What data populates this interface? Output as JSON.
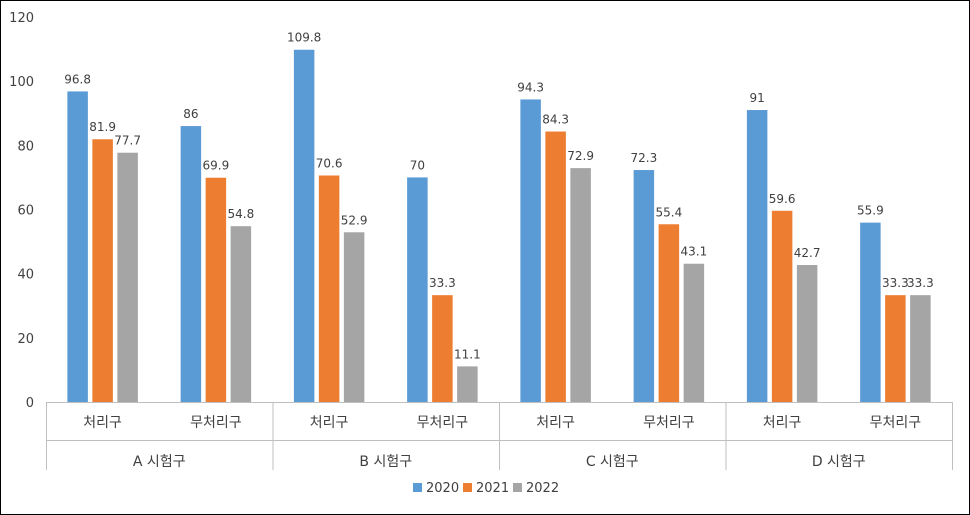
{
  "chart_data": {
    "type": "bar",
    "title": "",
    "xlabel": "",
    "ylabel": "",
    "ylim": [
      0,
      120
    ],
    "yticks": [
      0,
      20,
      40,
      60,
      80,
      100,
      120
    ],
    "grid": false,
    "legend_position": "bottom",
    "groups": [
      {
        "label": "A 시험구",
        "categories": [
          "처리구",
          "무처리구"
        ]
      },
      {
        "label": "B 시험구",
        "categories": [
          "처리구",
          "무처리구"
        ]
      },
      {
        "label": "C 시험구",
        "categories": [
          "처리구",
          "무처리구"
        ]
      },
      {
        "label": "D 시험구",
        "categories": [
          "처리구",
          "무처리구"
        ]
      }
    ],
    "categories": [
      "처리구",
      "무처리구",
      "처리구",
      "무처리구",
      "처리구",
      "무처리구",
      "처리구",
      "무처리구"
    ],
    "series": [
      {
        "name": "2020",
        "color": "#5B9BD5",
        "values": [
          96.8,
          86,
          109.8,
          70,
          94.3,
          72.3,
          91,
          55.9
        ]
      },
      {
        "name": "2021",
        "color": "#ED7D31",
        "values": [
          81.9,
          69.9,
          70.6,
          33.3,
          84.3,
          55.4,
          59.6,
          33.3
        ]
      },
      {
        "name": "2022",
        "color": "#A5A5A5",
        "values": [
          77.7,
          54.8,
          52.9,
          11.1,
          72.9,
          43.1,
          42.7,
          33.3
        ]
      }
    ]
  }
}
